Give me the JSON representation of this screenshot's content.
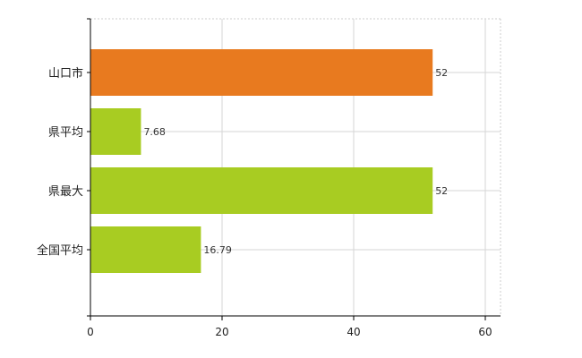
{
  "chart_data": {
    "type": "bar",
    "orientation": "horizontal",
    "categories": [
      "山口市",
      "県平均",
      "県最大",
      "全国平均"
    ],
    "values": [
      52,
      7.68,
      52,
      16.79
    ],
    "value_labels": [
      "52",
      "7.68",
      "52",
      "16.79"
    ],
    "bar_colors": [
      "#e87a1f",
      "#a8cc22",
      "#a8cc22",
      "#a8cc22"
    ],
    "xlim": [
      0,
      62
    ],
    "x_ticks": [
      0,
      20,
      40,
      60
    ],
    "x_tick_labels": [
      "0",
      "20",
      "40",
      "60"
    ],
    "grid": true,
    "title": "",
    "xlabel": "",
    "ylabel": ""
  }
}
